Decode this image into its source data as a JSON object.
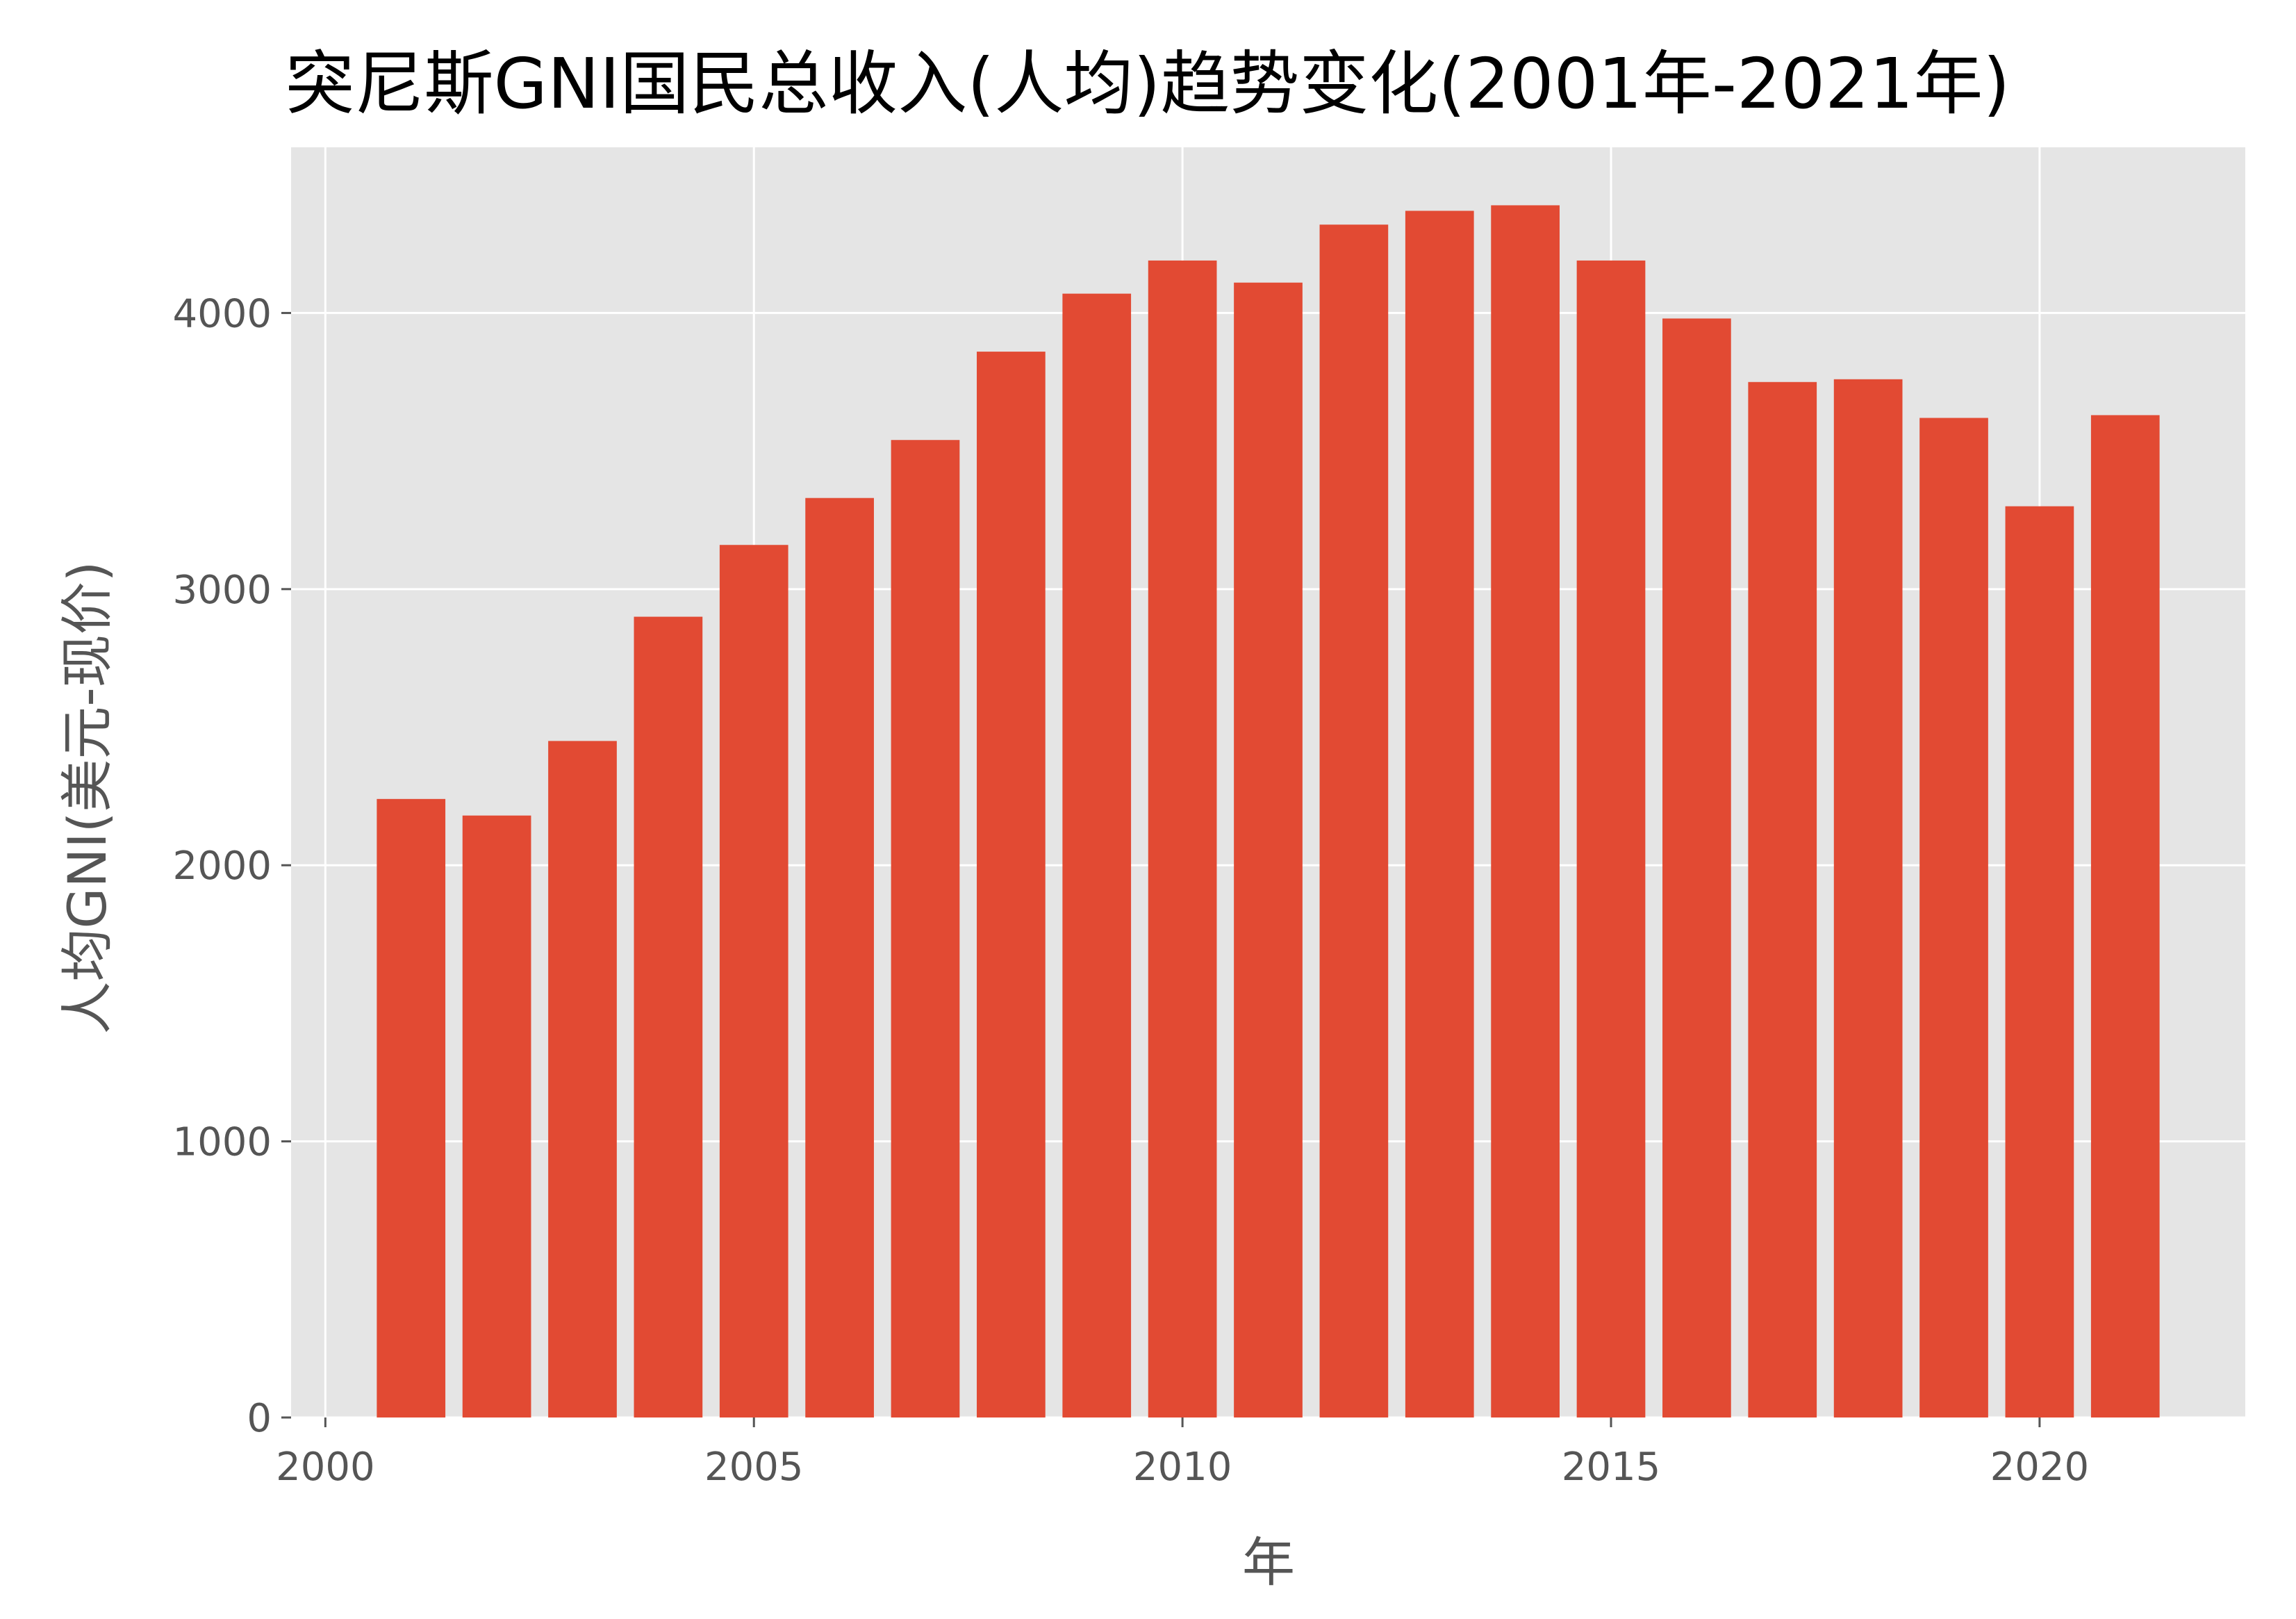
{
  "chart_data": {
    "type": "bar",
    "title": "突尼斯GNI国民总收入(人均)趋势变化(2001年-2021年)",
    "xlabel": "年",
    "ylabel": "人均GNI(美元-现价)",
    "x": [
      2001,
      2002,
      2003,
      2004,
      2005,
      2006,
      2007,
      2008,
      2009,
      2010,
      2011,
      2012,
      2013,
      2014,
      2015,
      2016,
      2017,
      2018,
      2019,
      2020,
      2021
    ],
    "values": [
      2240,
      2180,
      2450,
      2900,
      3160,
      3330,
      3540,
      3860,
      4070,
      4190,
      4110,
      4320,
      4370,
      4390,
      4190,
      3980,
      3750,
      3760,
      3620,
      3300,
      3630
    ],
    "xlim": [
      1999.6,
      2022.4
    ],
    "ylim": [
      0,
      4600
    ],
    "xticks": [
      "2000",
      "2005",
      "2010",
      "2015",
      "2020"
    ],
    "yticks": [
      "0",
      "1000",
      "2000",
      "3000",
      "4000"
    ],
    "grid": true,
    "bar_color": "#E24A33",
    "background_color": "#E5E5E5"
  }
}
